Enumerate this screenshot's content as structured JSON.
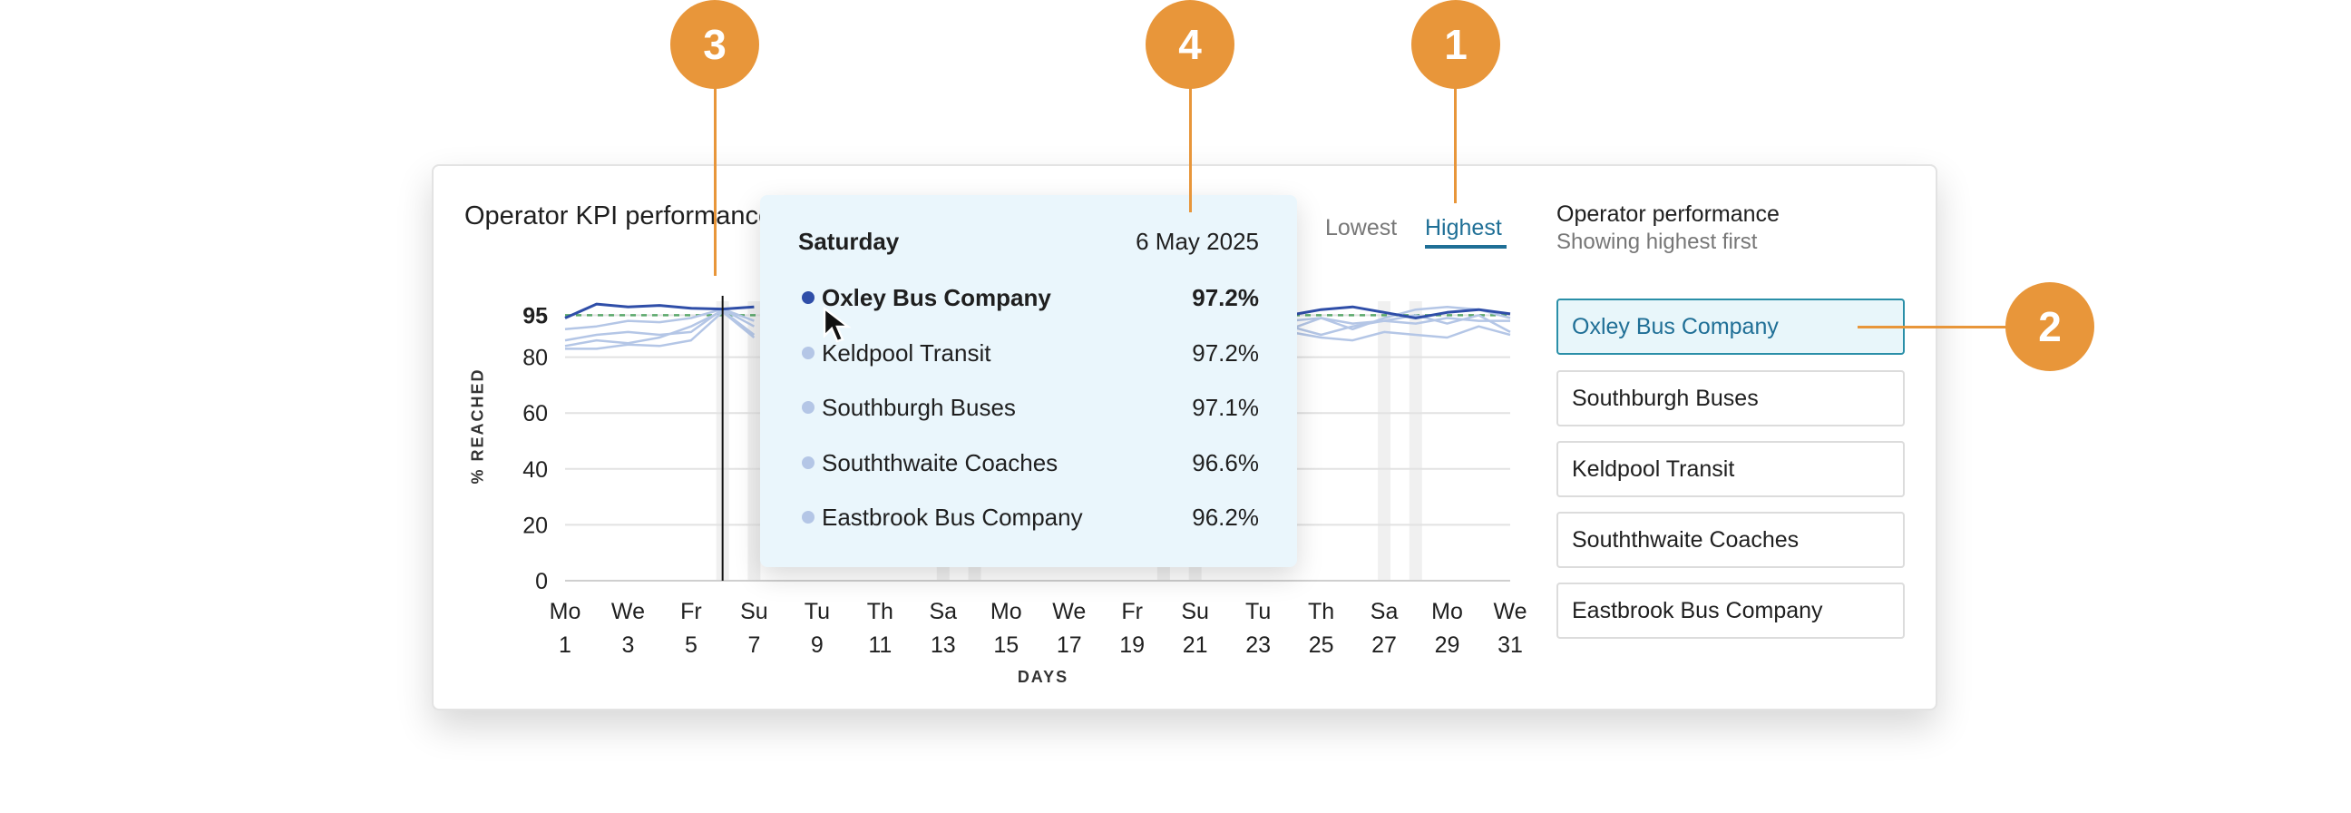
{
  "card": {
    "title": "Operator KPI performance",
    "sort_lowest": "Lowest",
    "sort_highest": "Highest"
  },
  "panel": {
    "title": "Operator performance",
    "subtitle": "Showing highest first",
    "operators": [
      "Oxley Bus Company",
      "Southburgh Buses",
      "Keldpool Transit",
      "Souththwaite Coaches",
      "Eastbrook Bus Company"
    ],
    "selected_index": 0
  },
  "tooltip": {
    "day": "Saturday",
    "date": "6 May 2025",
    "rows": [
      {
        "name": "Oxley Bus Company",
        "value": "97.2%"
      },
      {
        "name": "Keldpool Transit",
        "value": "97.2%"
      },
      {
        "name": "Southburgh Buses",
        "value": "97.1%"
      },
      {
        "name": "Souththwaite Coaches",
        "value": "96.6%"
      },
      {
        "name": "Eastbrook Bus Company",
        "value": "96.2%"
      }
    ]
  },
  "callouts": [
    "1",
    "2",
    "3",
    "4"
  ],
  "colors": {
    "accent": "#1f6f96",
    "callout": "#e8963a",
    "primary_series": "#2f4ea8",
    "secondary_series": "#b4c6e6",
    "target_line": "#5aa86a",
    "weekend_band": "#f0f0f0"
  },
  "chart_data": {
    "type": "line",
    "ylabel": "% REACHED",
    "xlabel": "DAYS",
    "ylim": [
      0,
      100
    ],
    "yticks": [
      0,
      20,
      40,
      60,
      80,
      95
    ],
    "target": 95,
    "x": [
      1,
      2,
      3,
      4,
      5,
      6,
      7,
      8,
      9,
      10,
      11,
      12,
      13,
      14,
      15,
      16,
      17,
      18,
      19,
      20,
      21,
      22,
      23,
      24,
      25,
      26,
      27,
      28,
      29,
      30,
      31
    ],
    "x_tick_labels": [
      {
        "day": "Mo",
        "date": "1"
      },
      {
        "day": "We",
        "date": "3"
      },
      {
        "day": "Fr",
        "date": "5"
      },
      {
        "day": "Su",
        "date": "7"
      },
      {
        "day": "Tu",
        "date": "9"
      },
      {
        "day": "Th",
        "date": "11"
      },
      {
        "day": "Sa",
        "date": "13"
      },
      {
        "day": "Mo",
        "date": "15"
      },
      {
        "day": "We",
        "date": "17"
      },
      {
        "day": "Fr",
        "date": "19"
      },
      {
        "day": "Su",
        "date": "21"
      },
      {
        "day": "Tu",
        "date": "23"
      },
      {
        "day": "Th",
        "date": "25"
      },
      {
        "day": "Sa",
        "date": "27"
      },
      {
        "day": "Mo",
        "date": "29"
      },
      {
        "day": "We",
        "date": "31"
      }
    ],
    "weekend_days": [
      6,
      7,
      13,
      14,
      20,
      21,
      27,
      28
    ],
    "hover_day": 6,
    "series": [
      {
        "name": "Oxley Bus Company",
        "values": [
          94,
          99,
          98,
          98.5,
          97.5,
          97.2,
          98,
          null,
          null,
          null,
          null,
          null,
          null,
          null,
          null,
          null,
          null,
          null,
          null,
          null,
          null,
          97,
          96,
          95,
          97,
          98,
          96,
          94,
          96,
          97,
          95.5
        ]
      },
      {
        "name": "Keldpool Transit",
        "values": [
          90,
          91,
          93,
          92.5,
          94,
          97.2,
          93,
          null,
          null,
          null,
          null,
          null,
          null,
          null,
          null,
          null,
          null,
          null,
          null,
          null,
          null,
          94,
          95,
          93,
          94,
          90,
          94,
          97,
          98,
          97,
          94
        ]
      },
      {
        "name": "Southburgh Buses",
        "values": [
          86,
          88,
          89,
          88,
          89,
          97.1,
          91,
          null,
          null,
          null,
          null,
          null,
          null,
          null,
          null,
          null,
          null,
          null,
          null,
          null,
          null,
          93,
          92,
          90,
          94,
          92,
          93,
          92,
          94,
          93,
          93
        ]
      },
      {
        "name": "Souththwaite Coaches",
        "values": [
          84,
          86,
          85,
          87,
          91,
          96.6,
          88,
          null,
          null,
          null,
          null,
          null,
          null,
          null,
          null,
          null,
          null,
          null,
          null,
          null,
          null,
          92,
          94,
          91,
          88,
          91,
          93,
          95,
          92,
          95,
          89
        ]
      },
      {
        "name": "Eastbrook Bus Company",
        "values": [
          83,
          83,
          84.5,
          84,
          86,
          96.2,
          87,
          null,
          null,
          null,
          null,
          null,
          null,
          null,
          null,
          null,
          null,
          null,
          null,
          null,
          null,
          91,
          90,
          89,
          87,
          86,
          89,
          88,
          87,
          91,
          88
        ]
      }
    ]
  }
}
